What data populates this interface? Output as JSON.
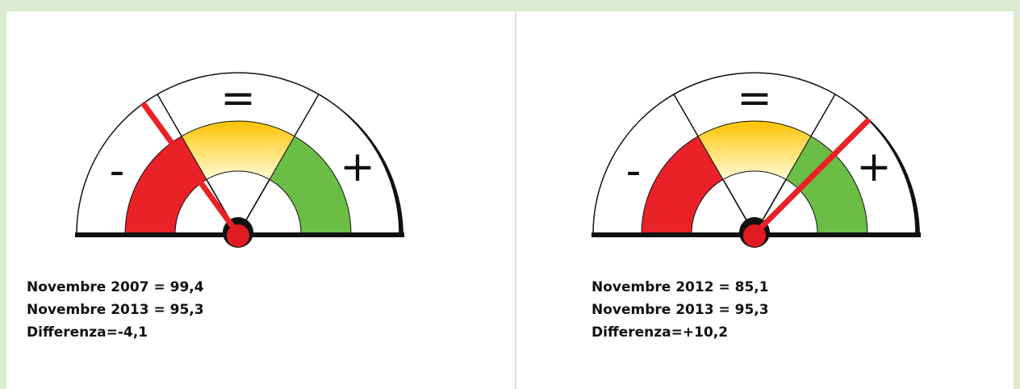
{
  "panels": [
    {
      "gauge_labels": [
        "-",
        "=",
        "+"
      ],
      "lines": [
        "Novembre 2007 = 99,4",
        "Novembre 2013 = 95,3",
        "Differenza=-4,1"
      ]
    },
    {
      "gauge_labels": [
        "-",
        "=",
        "+"
      ],
      "lines": [
        "Novembre 2012 = 85,1",
        "Novembre 2013 = 95,3",
        "Differenza=+10,2"
      ]
    }
  ]
}
